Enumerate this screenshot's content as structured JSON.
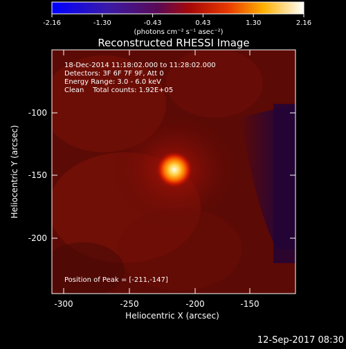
{
  "colorbar": {
    "tick_labels": [
      "-2.16",
      "-1.30",
      "-0.43",
      "0.43",
      "1.30",
      "2.16"
    ],
    "units": "(photons cm⁻² s⁻¹ asec⁻²)",
    "range": [
      -2.16,
      2.16
    ]
  },
  "image": {
    "title": "Reconstructed RHESSI Image",
    "info_lines": [
      "18-Dec-2014 11:18:02.000 to 11:28:02.000",
      "Detectors: 3F 6F 7F 9F, Att 0",
      "Energy Range: 3.0 - 6.0 keV",
      "Clean    Total counts: 1.92E+05"
    ],
    "peak_text": "Position of Peak = [-211,-147]",
    "peak_position": [
      -211,
      -147
    ]
  },
  "axes": {
    "x_label": "Heliocentric X (arcsec)",
    "y_label": "Heliocentric Y (arcsec)",
    "x_ticks": [
      "-300",
      "-250",
      "-200",
      "-150"
    ],
    "y_ticks": [
      "-100",
      "-150",
      "-200"
    ]
  },
  "footer": {
    "timestamp": "12-Sep-2017 08:30"
  },
  "colors": {
    "background": "#000000",
    "image_base": "#5a0a05",
    "peak_core": "#fffbe0"
  }
}
